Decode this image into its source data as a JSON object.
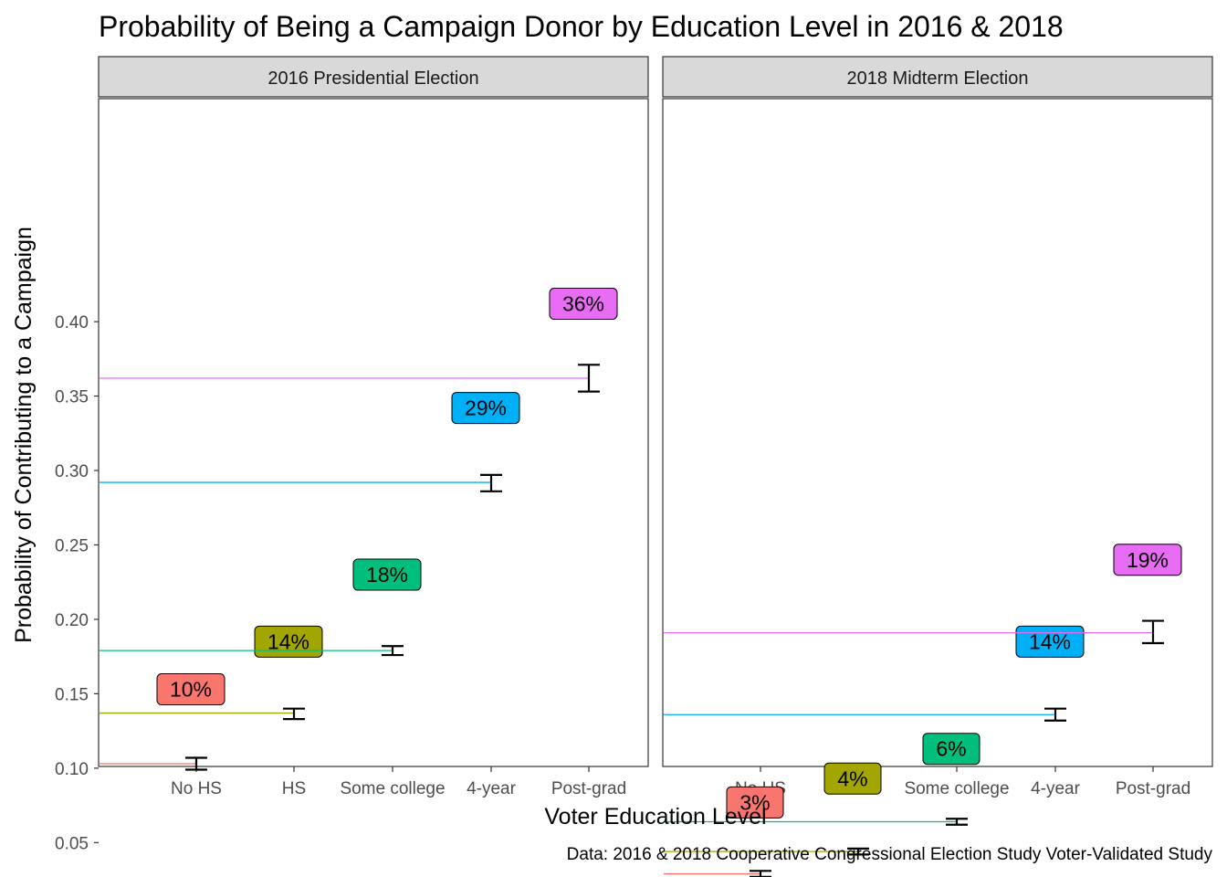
{
  "chart_data": {
    "type": "errorbar",
    "title": "Probability of Being a Campaign Donor by Education Level in 2016 & 2018",
    "xlabel": "Voter Education Level",
    "ylabel": "Probability of Contributing to a Campaign",
    "caption": "Data: 2016 & 2018 Cooperative Congressional Election Study Voter-Validated Study",
    "categories": [
      "No HS",
      "HS",
      "Some college",
      "4-year",
      "Post-grad"
    ],
    "colors": [
      "#F8766D",
      "#A3A500",
      "#00BF7D",
      "#00B0F6",
      "#E76BF3"
    ],
    "ylim": [
      0.0,
      0.45
    ],
    "yticks": [
      0.05,
      0.1,
      0.15,
      0.2,
      0.25,
      0.3,
      0.35,
      0.4
    ],
    "ytick_labels": [
      "0.05",
      "0.10",
      "0.15",
      "0.20",
      "0.25",
      "0.30",
      "0.35",
      "0.40"
    ],
    "panels": [
      {
        "name": "2016 Presidential Election",
        "estimates": [
          0.103,
          0.137,
          0.179,
          0.292,
          0.362
        ],
        "lower": [
          0.099,
          0.133,
          0.176,
          0.286,
          0.353
        ],
        "upper": [
          0.107,
          0.14,
          0.182,
          0.297,
          0.371
        ],
        "labels": [
          "10%",
          "14%",
          "18%",
          "29%",
          "36%"
        ],
        "label_y": [
          0.153,
          0.185,
          0.23,
          0.342,
          0.412
        ]
      },
      {
        "name": "2018 Midterm Election",
        "estimates": [
          0.029,
          0.044,
          0.064,
          0.136,
          0.191
        ],
        "lower": [
          0.027,
          0.042,
          0.062,
          0.132,
          0.184
        ],
        "upper": [
          0.031,
          0.046,
          0.066,
          0.14,
          0.199
        ],
        "labels": [
          "3%",
          "4%",
          "6%",
          "14%",
          "19%"
        ],
        "label_y": [
          0.077,
          0.093,
          0.113,
          0.185,
          0.24
        ]
      }
    ]
  }
}
